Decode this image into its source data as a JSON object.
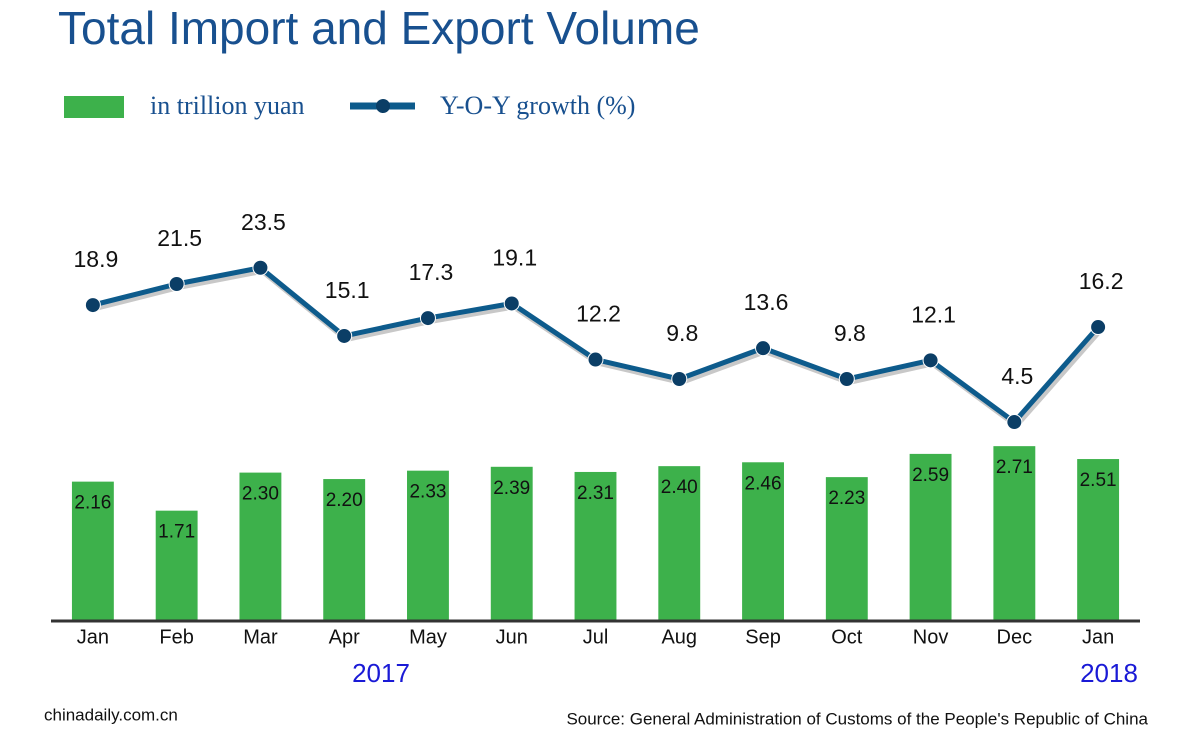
{
  "chart_data": {
    "type": "bar",
    "title": "Total Import and Export Volume",
    "categories": [
      "Jan",
      "Feb",
      "Mar",
      "Apr",
      "May",
      "Jun",
      "Jul",
      "Aug",
      "Sep",
      "Oct",
      "Nov",
      "Dec",
      "Jan"
    ],
    "year_labels": [
      "2017",
      "2018"
    ],
    "series": [
      {
        "name": "in trillion yuan",
        "type": "bar",
        "color": "#3db14b",
        "values": [
          2.16,
          1.71,
          2.3,
          2.2,
          2.33,
          2.39,
          2.31,
          2.4,
          2.46,
          2.23,
          2.59,
          2.71,
          2.51
        ],
        "value_labels": [
          "2.16",
          "1.71",
          "2.30",
          "2.20",
          "2.33",
          "2.39",
          "2.31",
          "2.40",
          "2.46",
          "2.23",
          "2.59",
          "2.71",
          "2.51"
        ]
      },
      {
        "name": "Y-O-Y growth (%)",
        "type": "line",
        "axis": "y2",
        "color": "#0d5b8c",
        "values": [
          18.9,
          21.5,
          23.5,
          15.1,
          17.3,
          19.1,
          12.2,
          9.8,
          13.6,
          9.8,
          12.1,
          4.5,
          16.2
        ]
      }
    ],
    "ylim": [
      0,
      7.3
    ],
    "y2lim": [
      -20,
      38
    ],
    "credit": "chinadaily.com.cn",
    "source": "Source: General Administration of Customs of the People's Republic of China"
  }
}
